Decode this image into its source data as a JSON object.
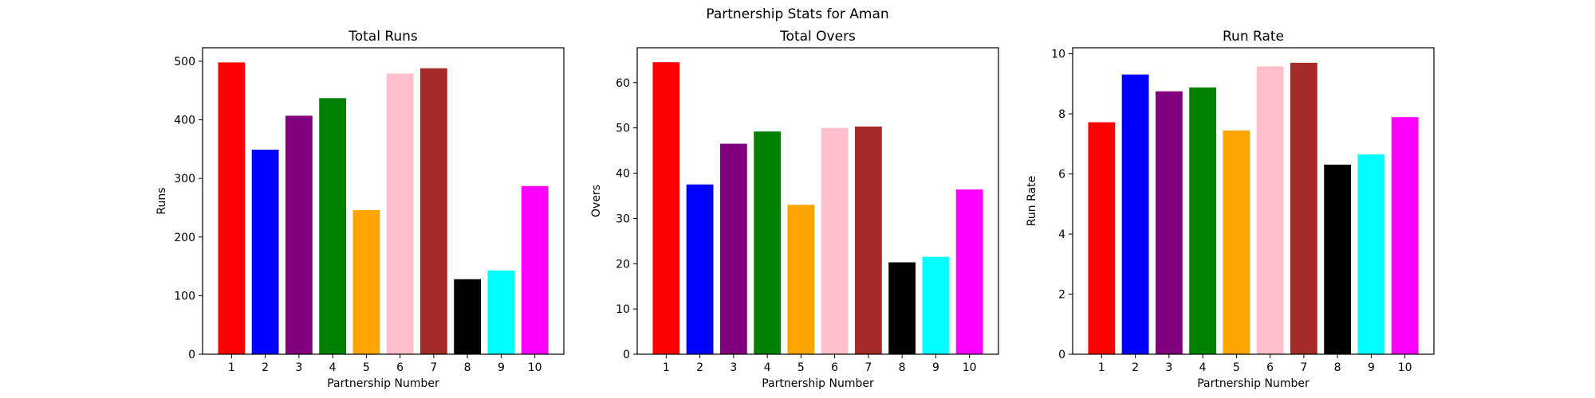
{
  "figure": {
    "suptitle": "Partnership Stats for Aman"
  },
  "chart_data": [
    {
      "type": "bar",
      "title": "Total Runs",
      "xlabel": "Partnership Number",
      "ylabel": "Runs",
      "categories": [
        "1",
        "2",
        "3",
        "4",
        "5",
        "6",
        "7",
        "8",
        "9",
        "10"
      ],
      "values": [
        498,
        349,
        407,
        437,
        246,
        479,
        488,
        128,
        143,
        287
      ],
      "colors": [
        "#ff0000",
        "#0000ff",
        "#800080",
        "#008000",
        "#ffa500",
        "#ffc0cb",
        "#a52a2a",
        "#000000",
        "#00ffff",
        "#ff00ff"
      ],
      "ylim": [
        0,
        523
      ],
      "yticks": [
        0,
        100,
        200,
        300,
        400,
        500
      ],
      "grid": false
    },
    {
      "type": "bar",
      "title": "Total Overs",
      "xlabel": "Partnership Number",
      "ylabel": "Overs",
      "categories": [
        "1",
        "2",
        "3",
        "4",
        "5",
        "6",
        "7",
        "8",
        "9",
        "10"
      ],
      "values": [
        64.5,
        37.5,
        46.5,
        49.2,
        33.0,
        50.0,
        50.3,
        20.3,
        21.5,
        36.4
      ],
      "colors": [
        "#ff0000",
        "#0000ff",
        "#800080",
        "#008000",
        "#ffa500",
        "#ffc0cb",
        "#a52a2a",
        "#000000",
        "#00ffff",
        "#ff00ff"
      ],
      "ylim": [
        0,
        67.7
      ],
      "yticks": [
        0,
        10,
        20,
        30,
        40,
        50,
        60
      ],
      "grid": false
    },
    {
      "type": "bar",
      "title": "Run Rate",
      "xlabel": "Partnership Number",
      "ylabel": "Run Rate",
      "categories": [
        "1",
        "2",
        "3",
        "4",
        "5",
        "6",
        "7",
        "8",
        "9",
        "10"
      ],
      "values": [
        7.72,
        9.31,
        8.75,
        8.88,
        7.45,
        9.58,
        9.7,
        6.31,
        6.65,
        7.89
      ],
      "colors": [
        "#ff0000",
        "#0000ff",
        "#800080",
        "#008000",
        "#ffa500",
        "#ffc0cb",
        "#a52a2a",
        "#000000",
        "#00ffff",
        "#ff00ff"
      ],
      "ylim": [
        0,
        10.2
      ],
      "yticks": [
        0,
        2,
        4,
        6,
        8,
        10
      ],
      "grid": false
    }
  ]
}
